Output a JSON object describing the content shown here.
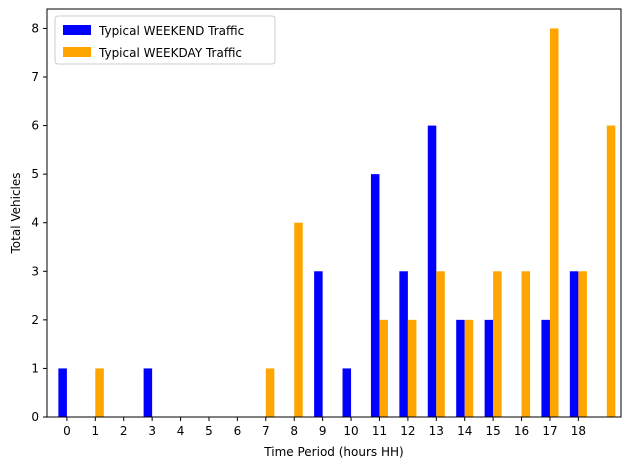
{
  "chart_data": {
    "type": "bar",
    "xlabel": "Time Period (hours HH)",
    "ylabel": "Total Vehicles",
    "ylim": [
      0,
      8.4
    ],
    "yticks": [
      0,
      1,
      2,
      3,
      4,
      5,
      6,
      7,
      8
    ],
    "tick_labels": [
      "0",
      "1",
      "2",
      "3",
      "4",
      "5",
      "6",
      "7",
      "8",
      "9",
      "10",
      "11",
      "12",
      "13",
      "14",
      "15",
      "16",
      "17",
      "18"
    ],
    "grid": false,
    "legend_position": "top-left",
    "series": [
      {
        "name": "Typical WEEKEND Traffic",
        "color": "#0000ff",
        "x": [
          0,
          1,
          2,
          3,
          4,
          5,
          6,
          7,
          8,
          9,
          10,
          11,
          12,
          13,
          14,
          15,
          16,
          17,
          18,
          19
        ],
        "values": [
          1,
          0,
          0,
          1,
          0,
          0,
          0,
          0,
          0,
          3,
          1,
          5,
          3,
          6,
          2,
          2,
          0,
          2,
          3,
          0
        ]
      },
      {
        "name": "Typical WEEKDAY Traffic",
        "color": "#ffa500",
        "x": [
          0,
          1,
          2,
          3,
          4,
          5,
          6,
          7,
          8,
          9,
          10,
          11,
          12,
          13,
          14,
          15,
          16,
          17,
          18,
          19
        ],
        "values": [
          0,
          1,
          0,
          0,
          0,
          0,
          0,
          1,
          4,
          0,
          0,
          2,
          2,
          3,
          2,
          3,
          3,
          8,
          3,
          6
        ]
      }
    ]
  }
}
